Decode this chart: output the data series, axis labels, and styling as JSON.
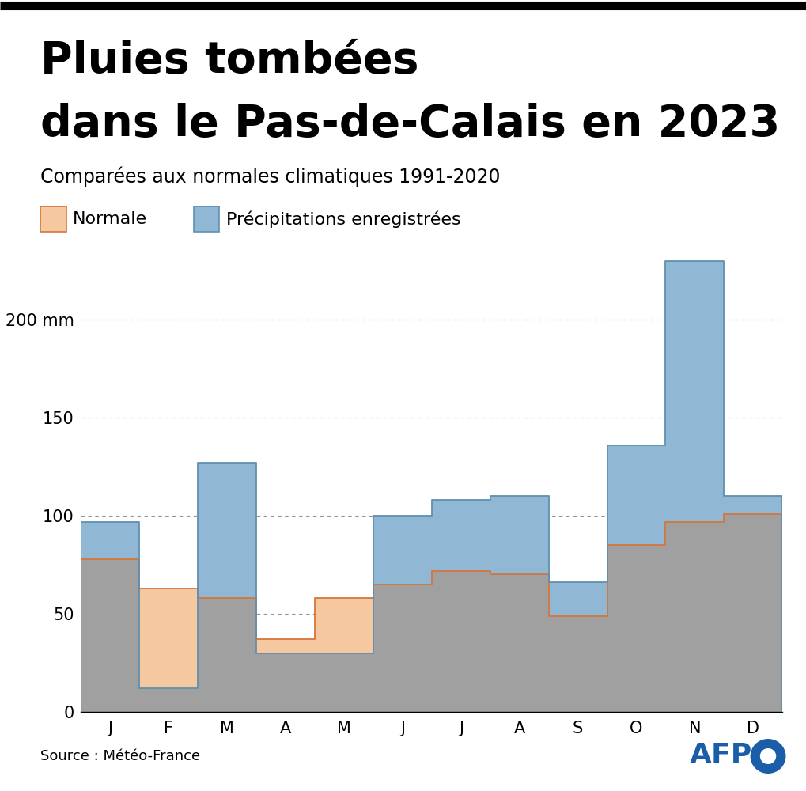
{
  "title_line1": "Pluies tombées",
  "title_line2": "dans le Pas-de-Calais en 2023",
  "subtitle": "Comparées aux normales climatiques 1991-2020",
  "months": [
    "J",
    "F",
    "M",
    "A",
    "M",
    "J",
    "J",
    "A",
    "S",
    "O",
    "N",
    "D"
  ],
  "normale": [
    78,
    63,
    58,
    37,
    58,
    65,
    72,
    70,
    49,
    85,
    97,
    101
  ],
  "precipitations": [
    97,
    12,
    127,
    30,
    30,
    100,
    108,
    110,
    66,
    136,
    230,
    110
  ],
  "normale_color": "#F5C8A0",
  "normale_edge_color": "#D4763B",
  "precip_color": "#90B8D5",
  "precip_edge_color": "#6090B0",
  "overlap_color": "#A0A0A0",
  "source_text": "Source : Météo-France",
  "afp_text": "AFP",
  "ylim": [
    0,
    240
  ],
  "yticks": [
    0,
    50,
    100,
    150,
    200
  ],
  "ytick_labels": [
    "0",
    "50",
    "100",
    "150",
    "200 mm"
  ],
  "background_color": "#FFFFFF",
  "title_fontsize": 40,
  "subtitle_fontsize": 17,
  "tick_fontsize": 15,
  "legend_fontsize": 16,
  "source_fontsize": 13
}
